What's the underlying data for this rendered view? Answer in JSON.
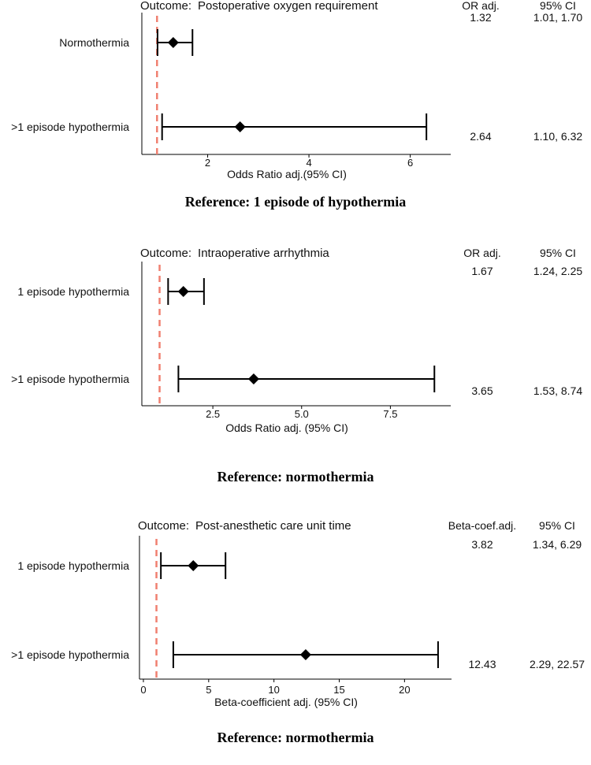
{
  "chart_data": [
    {
      "type": "forest",
      "outcome_label": "Outcome:",
      "title": "Postoperative oxygen requirement",
      "col_estimate": "OR adj.",
      "col_ci": "95% CI",
      "xlabel": "Odds Ratio adj.(95% CI)",
      "xlim": [
        0.7,
        6.8
      ],
      "xticks": [
        2,
        4,
        6
      ],
      "xtick_labels": [
        "2",
        "4",
        "6"
      ],
      "reference_x": 1,
      "reference_color": "#f08070",
      "rows": [
        {
          "label": "Normothermia",
          "estimate": 1.32,
          "lower": 1.01,
          "upper": 1.7,
          "estimate_text": "1.32",
          "ci_text": "1.01, 1.70"
        },
        {
          "label": ">1 episode hypothermia",
          "estimate": 2.64,
          "lower": 1.1,
          "upper": 6.32,
          "estimate_text": "2.64",
          "ci_text": "1.10, 6.32"
        }
      ],
      "caption": "Reference: 1 episode of hypothermia"
    },
    {
      "type": "forest",
      "outcome_label": "Outcome:",
      "title": "Intraoperative arrhythmia",
      "col_estimate": "OR adj.",
      "col_ci": "95% CI",
      "xlabel": "Odds Ratio adj. (95% CI)",
      "xlim": [
        0.5,
        9.2
      ],
      "xticks": [
        2.5,
        5.0,
        7.5
      ],
      "xtick_labels": [
        "2.5",
        "5.0",
        "7.5"
      ],
      "reference_x": 1,
      "reference_color": "#f08070",
      "rows": [
        {
          "label": "1 episode hypothermia",
          "estimate": 1.67,
          "lower": 1.24,
          "upper": 2.25,
          "estimate_text": "1.67",
          "ci_text": "1.24, 2.25"
        },
        {
          "label": ">1 episode hypothermia",
          "estimate": 3.65,
          "lower": 1.53,
          "upper": 8.74,
          "estimate_text": "3.65",
          "ci_text": "1.53, 8.74"
        }
      ],
      "caption": "Reference: normothermia"
    },
    {
      "type": "forest",
      "outcome_label": "Outcome:",
      "title": "Post-anesthetic care unit time",
      "col_estimate": "Beta-coef.adj.",
      "col_ci": "95% CI",
      "xlabel": "Beta-coefficient adj. (95% CI)",
      "xlim": [
        -0.3,
        23.6
      ],
      "xticks": [
        0,
        5,
        10,
        15,
        20
      ],
      "xtick_labels": [
        "0",
        "5",
        "10",
        "15",
        "20"
      ],
      "reference_x": 1,
      "reference_color": "#f08070",
      "rows": [
        {
          "label": "1 episode hypothermia",
          "estimate": 3.82,
          "lower": 1.34,
          "upper": 6.29,
          "estimate_text": "3.82",
          "ci_text": "1.34, 6.29"
        },
        {
          "label": ">1 episode hypothermia",
          "estimate": 12.43,
          "lower": 2.29,
          "upper": 22.57,
          "estimate_text": "12.43",
          "ci_text": "2.29, 22.57"
        }
      ],
      "caption": "Reference: normothermia"
    }
  ]
}
